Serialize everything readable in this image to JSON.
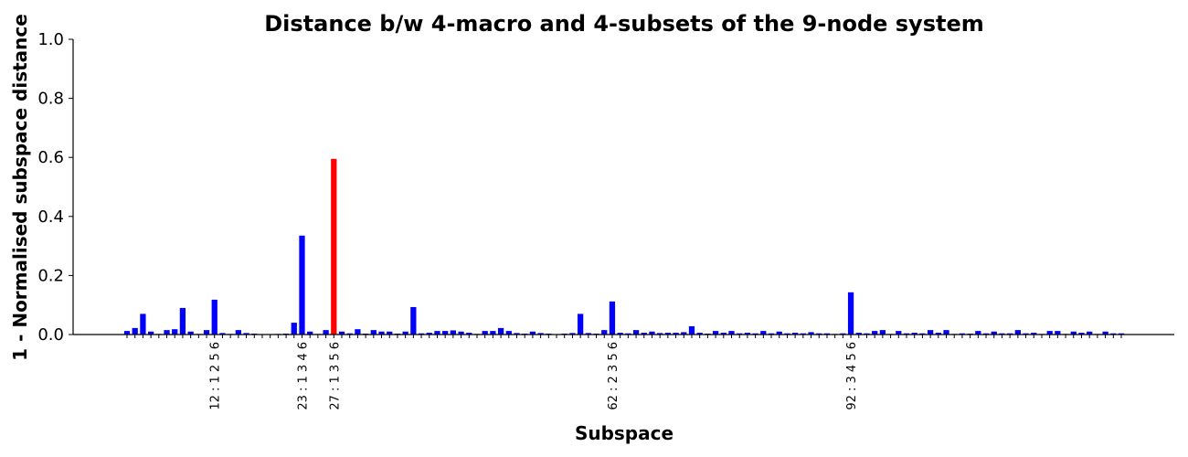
{
  "chart_data": {
    "type": "bar",
    "title": "Distance b/w 4-macro and 4-subsets of the 9-node system",
    "xlabel": "Subspace",
    "ylabel": "1 - Normalised subspace distance",
    "ylim": [
      0,
      1.0
    ],
    "yticks": [
      "0.0",
      "0.2",
      "0.4",
      "0.6",
      "0.8",
      "1.0"
    ],
    "grid": false,
    "highlight_color": "#ff0000",
    "bar_color": "#0000ff",
    "categories_count": 126,
    "labeled_ticks": [
      {
        "index": 11,
        "label": "12 : 1 2 5 6"
      },
      {
        "index": 22,
        "label": "23 : 1 3 4 6"
      },
      {
        "index": 26,
        "label": "27 : 1 3 5 6"
      },
      {
        "index": 61,
        "label": "62 : 2 3 5 6"
      },
      {
        "index": 91,
        "label": "92 : 3 4 5 6"
      }
    ],
    "highlight_index": 26,
    "values": [
      0.012,
      0.022,
      0.07,
      0.01,
      0.002,
      0.015,
      0.018,
      0.09,
      0.01,
      0.002,
      0.015,
      0.118,
      0.005,
      0.002,
      0.015,
      0.005,
      0.003,
      0.001,
      0.001,
      0.002,
      0.003,
      0.04,
      0.335,
      0.01,
      0.002,
      0.015,
      0.595,
      0.01,
      0.004,
      0.018,
      0.003,
      0.015,
      0.01,
      0.01,
      0.003,
      0.01,
      0.093,
      0.004,
      0.006,
      0.012,
      0.012,
      0.014,
      0.01,
      0.006,
      0.002,
      0.012,
      0.012,
      0.022,
      0.012,
      0.005,
      0.003,
      0.01,
      0.005,
      0.003,
      0.001,
      0.003,
      0.005,
      0.07,
      0.005,
      0.003,
      0.015,
      0.112,
      0.006,
      0.004,
      0.015,
      0.006,
      0.01,
      0.005,
      0.006,
      0.006,
      0.008,
      0.028,
      0.006,
      0.003,
      0.012,
      0.006,
      0.012,
      0.004,
      0.006,
      0.004,
      0.012,
      0.004,
      0.01,
      0.004,
      0.006,
      0.004,
      0.008,
      0.004,
      0.004,
      0.002,
      0.004,
      0.143,
      0.006,
      0.004,
      0.012,
      0.015,
      0.002,
      0.012,
      0.004,
      0.006,
      0.004,
      0.015,
      0.006,
      0.015,
      0.002,
      0.004,
      0.003,
      0.012,
      0.004,
      0.01,
      0.004,
      0.004,
      0.015,
      0.004,
      0.006,
      0.002,
      0.012,
      0.012,
      0.002,
      0.01,
      0.006,
      0.01,
      0.002,
      0.01,
      0.004,
      0.004
    ]
  }
}
